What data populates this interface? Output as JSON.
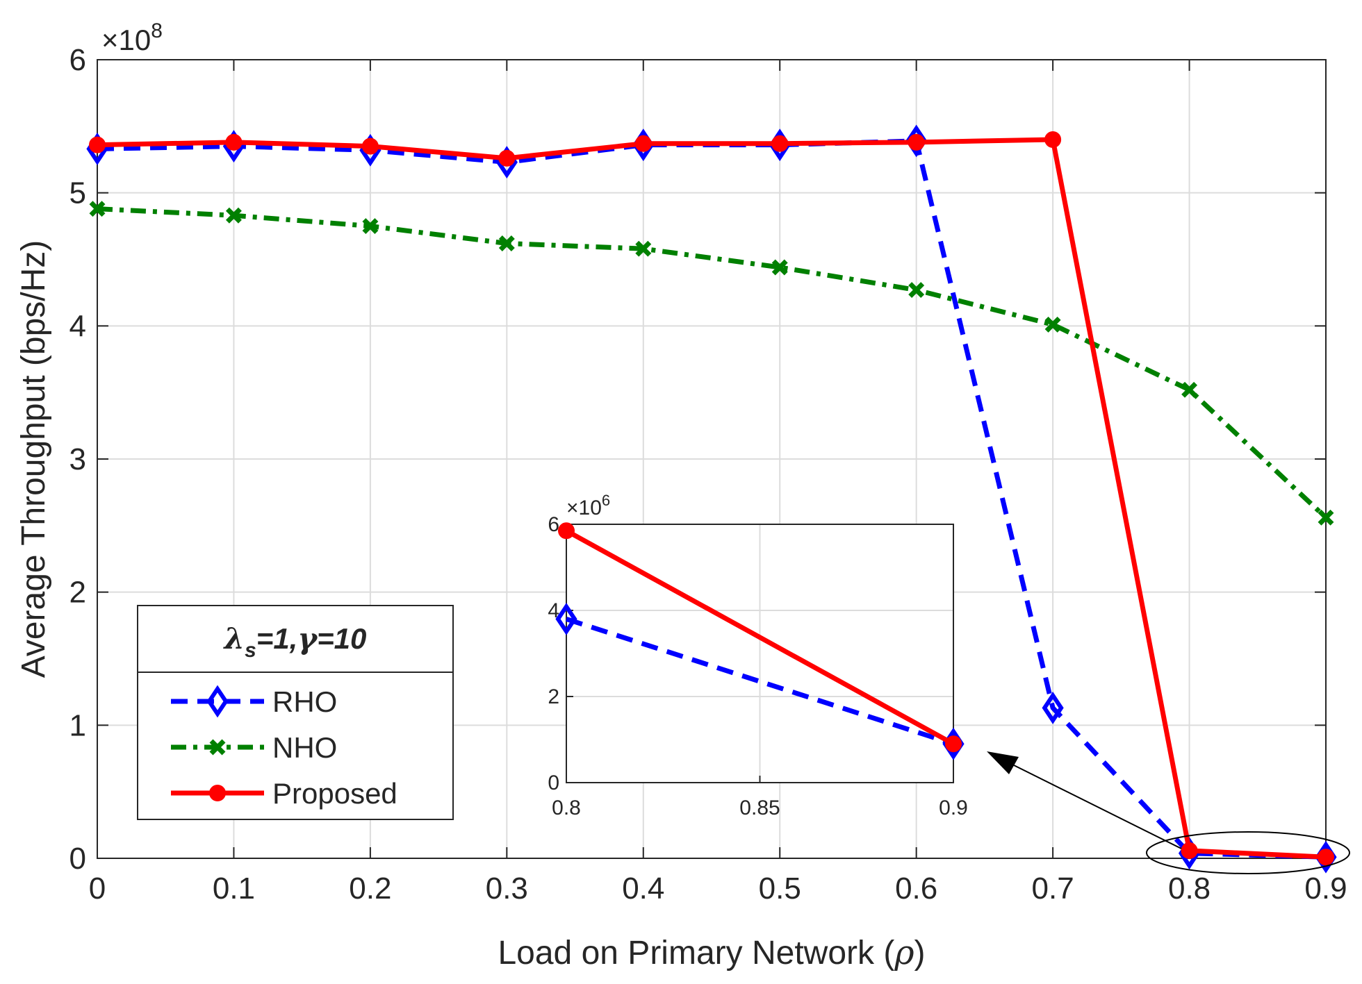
{
  "chart_data": {
    "type": "line",
    "xlabel_main": "Load on Primary Network (",
    "xlabel_symbol": "ρ",
    "xlabel_close": ")",
    "ylabel": "Average Throughput (bps/Hz)",
    "xlim": [
      0,
      0.9
    ],
    "ylim": [
      0,
      6
    ],
    "x_ticks": [
      "0",
      "0.1",
      "0.2",
      "0.3",
      "0.4",
      "0.5",
      "0.6",
      "0.7",
      "0.8",
      "0.9"
    ],
    "y_ticks": [
      "0",
      "1",
      "2",
      "3",
      "4",
      "5",
      "6"
    ],
    "y_exponent_base": "×10",
    "y_exponent_power": "8",
    "x": [
      0,
      0.1,
      0.2,
      0.3,
      0.4,
      0.5,
      0.6,
      0.7,
      0.8,
      0.9
    ],
    "series": [
      {
        "name": "RHO",
        "color": "#0000ff",
        "style": "dashed",
        "marker": "diamond",
        "values": [
          5.33,
          5.35,
          5.32,
          5.23,
          5.36,
          5.36,
          5.39,
          1.13,
          0.038,
          0.009
        ]
      },
      {
        "name": "NHO",
        "color": "#008000",
        "style": "dashdot",
        "marker": "x",
        "values": [
          4.88,
          4.83,
          4.75,
          4.62,
          4.58,
          4.44,
          4.27,
          4.01,
          3.52,
          2.56
        ]
      },
      {
        "name": "Proposed",
        "color": "#ff0000",
        "style": "solid",
        "marker": "circle",
        "values": [
          5.36,
          5.38,
          5.35,
          5.26,
          5.37,
          5.37,
          5.38,
          5.4,
          0.058,
          0.009
        ]
      }
    ],
    "legend": {
      "title_lambda": "λ",
      "title_sub": "s",
      "title_rest1": "=1,",
      "title_gamma": "γ",
      "title_rest2": "=10",
      "position": "lower-left"
    },
    "inset": {
      "xlim": [
        0.8,
        0.9
      ],
      "ylim": [
        0,
        6
      ],
      "x_ticks": [
        "0.8",
        "0.85",
        "0.9"
      ],
      "y_ticks": [
        "0",
        "2",
        "4",
        "6"
      ],
      "y_exponent_base": "×10",
      "y_exponent_power": "6",
      "x": [
        0.8,
        0.9
      ],
      "series": [
        {
          "name": "RHO",
          "values": [
            3.8,
            0.9
          ]
        },
        {
          "name": "Proposed",
          "values": [
            5.85,
            0.9
          ]
        }
      ]
    },
    "grid": true
  }
}
